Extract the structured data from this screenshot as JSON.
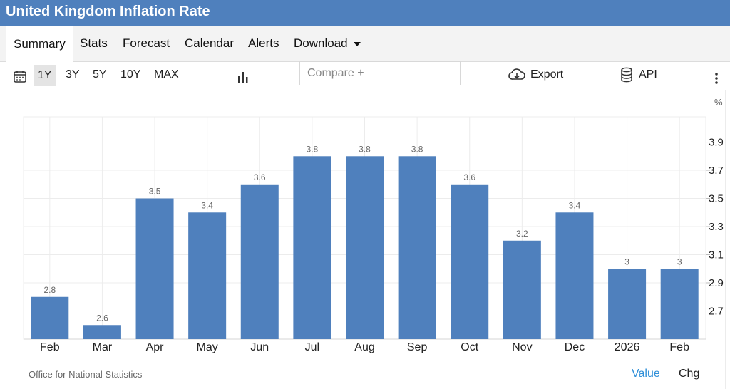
{
  "title": "United Kingdom Inflation Rate",
  "tabs": [
    {
      "label": "Summary"
    },
    {
      "label": "Stats"
    },
    {
      "label": "Forecast"
    },
    {
      "label": "Calendar"
    },
    {
      "label": "Alerts"
    },
    {
      "label": "Download"
    }
  ],
  "toolbar": {
    "ranges": [
      "1Y",
      "3Y",
      "5Y",
      "10Y",
      "MAX"
    ],
    "active_range": "1Y",
    "compare_placeholder": "Compare +",
    "export_label": "Export",
    "api_label": "API"
  },
  "footer": {
    "source": "Office for National Statistics",
    "value_label": "Value",
    "chg_label": "Chg"
  },
  "colors": {
    "bar": "#4f80bd",
    "header": "#4f80bd",
    "link": "#2f8fd8"
  },
  "chart_data": {
    "type": "bar",
    "unit": "%",
    "categories": [
      "Feb",
      "Mar",
      "Apr",
      "May",
      "Jun",
      "Jul",
      "Aug",
      "Sep",
      "Oct",
      "Nov",
      "Dec",
      "2026",
      "Feb"
    ],
    "values": [
      2.8,
      2.6,
      3.5,
      3.4,
      3.6,
      3.8,
      3.8,
      3.8,
      3.6,
      3.2,
      3.4,
      3,
      3
    ],
    "labels": [
      "2.8",
      "2.6",
      "3.5",
      "3.4",
      "3.6",
      "3.8",
      "3.8",
      "3.8",
      "3.6",
      "3.2",
      "3.4",
      "3",
      "3"
    ],
    "yticks": [
      "2.7",
      "2.9",
      "3.1",
      "3.3",
      "3.5",
      "3.7",
      "3.9"
    ],
    "ylim": [
      2.5,
      4.08
    ],
    "grid": true
  }
}
